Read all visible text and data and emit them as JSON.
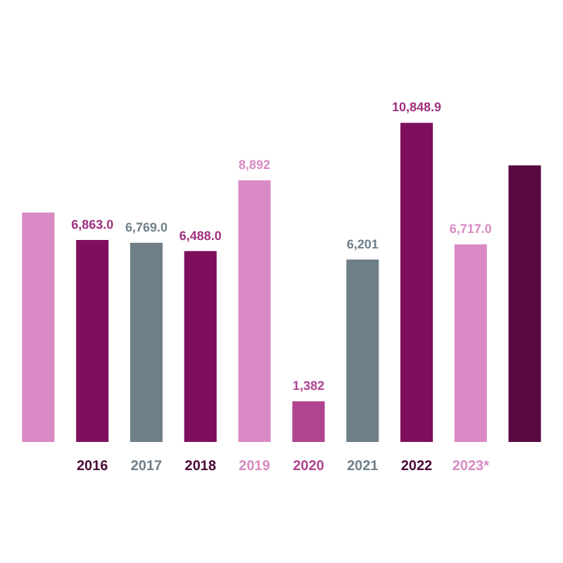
{
  "chart_data": {
    "type": "bar",
    "categories": [
      null,
      "2016",
      "2017",
      "2018",
      "2019",
      "2020",
      "2021",
      "2022",
      "2023*",
      null
    ],
    "values": [
      7800,
      6863.0,
      6769.0,
      6488.0,
      8892,
      1382,
      6201,
      10848.9,
      6717.0,
      9400
    ],
    "colors": [
      "#d98ac4",
      "#7d0f5e",
      "#6f7f88",
      "#7d0f5e",
      "#d98ac4",
      "#b0458f",
      "#6f7f88",
      "#7d0f5e",
      "#d98ac4",
      "#5a0a42"
    ],
    "value_labels": [
      null,
      "6,863.0",
      "6,769.0",
      "6,488.0",
      "8,892",
      "1,382",
      "6,201",
      "10,848.9",
      "6,717.0",
      null
    ],
    "grid": false,
    "legend": false
  }
}
